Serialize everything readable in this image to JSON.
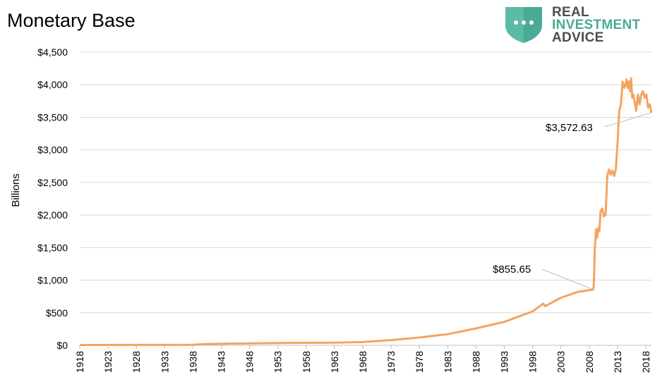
{
  "brand": {
    "line1": "REAL",
    "line2": "INVESTMENT",
    "line3": "ADVICE",
    "icon": "shield-chat-icon",
    "color_teal": "#4aaa96",
    "color_dark": "#4d4d4d"
  },
  "chart_data": {
    "type": "line",
    "title": "Monetary Base",
    "xlabel": "",
    "ylabel": "Billions",
    "xlim": [
      1918,
      2019
    ],
    "ylim": [
      0,
      4500
    ],
    "y_ticks": [
      0,
      500,
      1000,
      1500,
      2000,
      2500,
      3000,
      3500,
      4000,
      4500
    ],
    "y_tick_labels": [
      "$0",
      "$500",
      "$1,000",
      "$1,500",
      "$2,000",
      "$2,500",
      "$3,000",
      "$3,500",
      "$4,000",
      "$4,500"
    ],
    "x_tick_labels": [
      "1918",
      "1923",
      "1928",
      "1933",
      "1938",
      "1943",
      "1948",
      "1953",
      "1958",
      "1963",
      "1968",
      "1973",
      "1978",
      "1983",
      "1988",
      "1993",
      "1998",
      "2003",
      "2008",
      "2013",
      "2018"
    ],
    "grid": true,
    "line_color": "#f4a460",
    "series": [
      {
        "x": [
          1918,
          1930,
          1938,
          1940,
          1943,
          1948,
          1953,
          1958,
          1963,
          1968,
          1973,
          1978,
          1983,
          1988,
          1993,
          1998,
          1999.9,
          2000.2,
          2003,
          2006,
          2008.7,
          2008.8,
          2009,
          2009.2,
          2009.4,
          2009.6,
          2009.8,
          2010,
          2010.3,
          2010.6,
          2010.9,
          2011.2,
          2011.5,
          2011.8,
          2012.1,
          2012.4,
          2012.7,
          2013,
          2013.3,
          2013.6,
          2013.9,
          2014.2,
          2014.4,
          2014.6,
          2014.8,
          2015,
          2015.2,
          2015.4,
          2015.6,
          2015.8,
          2016,
          2016.3,
          2016.6,
          2016.9,
          2017.2,
          2017.5,
          2017.8,
          2018.1,
          2018.4,
          2018.7,
          2019
        ],
        "y": [
          5,
          7,
          8,
          20,
          25,
          30,
          35,
          38,
          40,
          50,
          80,
          120,
          170,
          260,
          360,
          520,
          640,
          600,
          730,
          820,
          855.65,
          900,
          1500,
          1780,
          1650,
          1800,
          1750,
          2050,
          2100,
          1980,
          2000,
          2600,
          2700,
          2620,
          2680,
          2600,
          2700,
          3100,
          3600,
          3700,
          4050,
          3950,
          4000,
          4080,
          3950,
          4050,
          3900,
          4100,
          3800,
          3850,
          3750,
          3600,
          3850,
          3700,
          3850,
          3900,
          3800,
          3850,
          3650,
          3700,
          3572.63
        ]
      }
    ],
    "annotations": [
      {
        "label": "$855.65",
        "x": 2008.7,
        "y": 855.65
      },
      {
        "label": "$3,572.63",
        "x": 2019,
        "y": 3572.63
      }
    ]
  }
}
